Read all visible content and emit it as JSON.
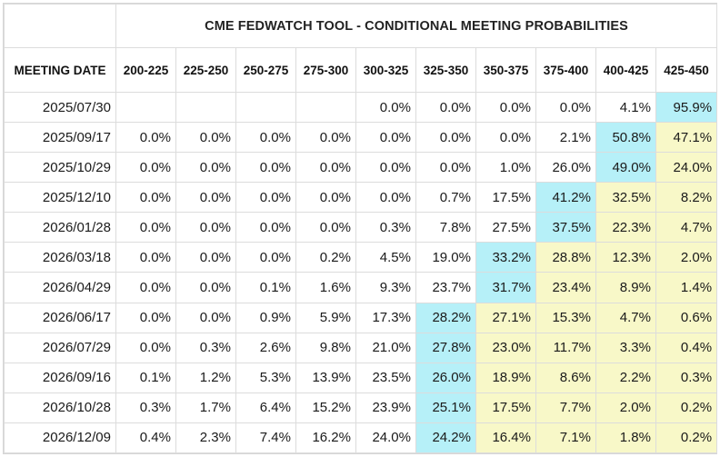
{
  "colors": {
    "max_highlight": "#b6f0f8",
    "above_max": "#f8f8c8",
    "grid": "#dcdcdc"
  },
  "chart_data": {
    "type": "table",
    "title": "CME FEDWATCH TOOL - CONDITIONAL MEETING PROBABILITIES",
    "row_header": "MEETING DATE",
    "columns": [
      "200-225",
      "225-250",
      "250-275",
      "275-300",
      "300-325",
      "325-350",
      "350-375",
      "375-400",
      "400-425",
      "425-450"
    ],
    "rows": [
      {
        "date": "2025/07/30",
        "values": [
          "",
          "",
          "",
          "",
          "0.0%",
          "0.0%",
          "0.0%",
          "0.0%",
          "4.1%",
          "95.9%"
        ]
      },
      {
        "date": "2025/09/17",
        "values": [
          "0.0%",
          "0.0%",
          "0.0%",
          "0.0%",
          "0.0%",
          "0.0%",
          "0.0%",
          "2.1%",
          "50.8%",
          "47.1%"
        ]
      },
      {
        "date": "2025/10/29",
        "values": [
          "0.0%",
          "0.0%",
          "0.0%",
          "0.0%",
          "0.0%",
          "0.0%",
          "1.0%",
          "26.0%",
          "49.0%",
          "24.0%"
        ]
      },
      {
        "date": "2025/12/10",
        "values": [
          "0.0%",
          "0.0%",
          "0.0%",
          "0.0%",
          "0.0%",
          "0.7%",
          "17.5%",
          "41.2%",
          "32.5%",
          "8.2%"
        ]
      },
      {
        "date": "2026/01/28",
        "values": [
          "0.0%",
          "0.0%",
          "0.0%",
          "0.0%",
          "0.3%",
          "7.8%",
          "27.5%",
          "37.5%",
          "22.3%",
          "4.7%"
        ]
      },
      {
        "date": "2026/03/18",
        "values": [
          "0.0%",
          "0.0%",
          "0.0%",
          "0.2%",
          "4.5%",
          "19.0%",
          "33.2%",
          "28.8%",
          "12.3%",
          "2.0%"
        ]
      },
      {
        "date": "2026/04/29",
        "values": [
          "0.0%",
          "0.0%",
          "0.1%",
          "1.6%",
          "9.3%",
          "23.7%",
          "31.7%",
          "23.4%",
          "8.9%",
          "1.4%"
        ]
      },
      {
        "date": "2026/06/17",
        "values": [
          "0.0%",
          "0.0%",
          "0.9%",
          "5.9%",
          "17.3%",
          "28.2%",
          "27.1%",
          "15.3%",
          "4.7%",
          "0.6%"
        ]
      },
      {
        "date": "2026/07/29",
        "values": [
          "0.0%",
          "0.3%",
          "2.6%",
          "9.8%",
          "21.0%",
          "27.8%",
          "23.0%",
          "11.7%",
          "3.3%",
          "0.4%"
        ]
      },
      {
        "date": "2026/09/16",
        "values": [
          "0.1%",
          "1.2%",
          "5.3%",
          "13.9%",
          "23.5%",
          "26.0%",
          "18.9%",
          "8.6%",
          "2.2%",
          "0.3%"
        ]
      },
      {
        "date": "2026/10/28",
        "values": [
          "0.3%",
          "1.7%",
          "6.4%",
          "15.2%",
          "23.9%",
          "25.1%",
          "17.5%",
          "7.7%",
          "2.0%",
          "0.2%"
        ]
      },
      {
        "date": "2026/12/09",
        "values": [
          "0.4%",
          "2.3%",
          "7.4%",
          "16.2%",
          "24.0%",
          "24.2%",
          "16.4%",
          "7.1%",
          "1.8%",
          "0.2%"
        ]
      }
    ]
  }
}
